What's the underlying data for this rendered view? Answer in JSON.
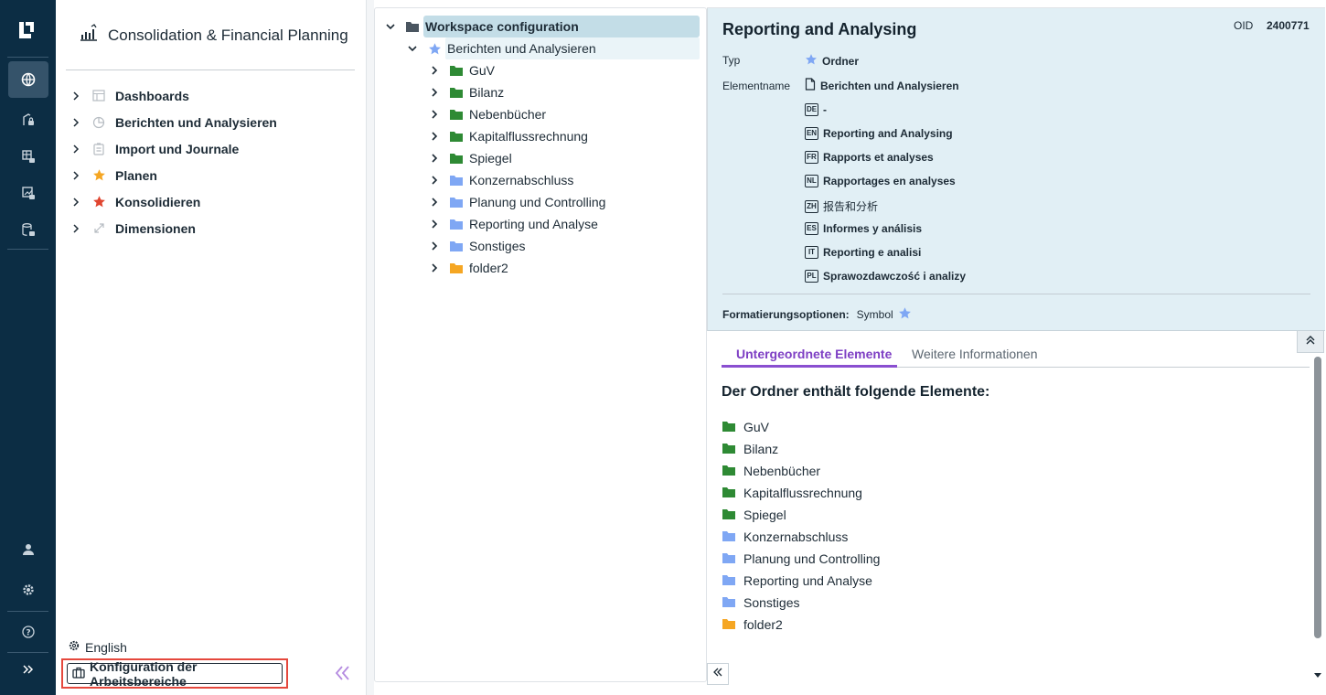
{
  "colors": {
    "rail_bg": "#0c2d44",
    "accent_purple": "#8a4fd0",
    "folder_green": "#2e8a34",
    "folder_blue": "#7fa7f4",
    "folder_orange": "#f5a623",
    "star_blue": "#7fa7f4",
    "star_orange": "#f5a623",
    "star_red": "#e0452f",
    "highlight_red": "#e5483d"
  },
  "rail": {
    "icons": [
      "logo-icon",
      "globe-icon",
      "lock-building-icon",
      "lock-grid-icon",
      "lock-chart-icon",
      "lock-database-icon",
      "user-icon",
      "settings-icon",
      "help-icon",
      "expand-icon"
    ]
  },
  "nav": {
    "title": "Consolidation & Financial Planning",
    "items": [
      {
        "label": "Dashboards",
        "icon": "table-icon"
      },
      {
        "label": "Berichten und Analysieren",
        "icon": "pie-chart-icon"
      },
      {
        "label": "Import und Journale",
        "icon": "clipboard-icon"
      },
      {
        "label": "Planen",
        "icon": "star-icon"
      },
      {
        "label": "Konsolidieren",
        "icon": "star-icon"
      },
      {
        "label": "Dimensionen",
        "icon": "arrows-icon"
      }
    ],
    "language": "English",
    "workspace_config": "Konfiguration der Arbeitsbereiche"
  },
  "tree": {
    "root": "Workspace configuration",
    "selected": "Berichten und Analysieren",
    "children": [
      {
        "label": "GuV",
        "color": "green"
      },
      {
        "label": "Bilanz",
        "color": "green"
      },
      {
        "label": "Nebenbücher",
        "color": "green"
      },
      {
        "label": "Kapitalflussrechnung",
        "color": "green"
      },
      {
        "label": "Spiegel",
        "color": "green"
      },
      {
        "label": "Konzernabschluss",
        "color": "blue"
      },
      {
        "label": "Planung und Controlling",
        "color": "blue"
      },
      {
        "label": "Reporting und Analyse",
        "color": "blue"
      },
      {
        "label": "Sonstiges",
        "color": "blue"
      },
      {
        "label": "folder2",
        "color": "orange"
      }
    ]
  },
  "details": {
    "title": "Reporting and Analysing",
    "oid_label": "OID",
    "oid_value": "2400771",
    "type_label": "Typ",
    "type_value": "Ordner",
    "element_label": "Elementname",
    "element_value": "Berichten und Analysieren",
    "translations": [
      {
        "lang": "DE",
        "text": "-"
      },
      {
        "lang": "EN",
        "text": "Reporting and Analysing"
      },
      {
        "lang": "FR",
        "text": "Rapports et analyses"
      },
      {
        "lang": "NL",
        "text": "Rapportages en analyses"
      },
      {
        "lang": "ZH",
        "text": "报告和分析"
      },
      {
        "lang": "ES",
        "text": "Informes y análisis"
      },
      {
        "lang": "IT",
        "text": "Reporting e analisi"
      },
      {
        "lang": "PL",
        "text": "Sprawozdawczość i analizy"
      }
    ],
    "format_label": "Formatierungsoptionen:",
    "format_value": "Symbol",
    "tabs": [
      "Untergeordnete Elemente",
      "Weitere Informationen"
    ],
    "contains_title": "Der Ordner enthält folgende Elemente:"
  }
}
